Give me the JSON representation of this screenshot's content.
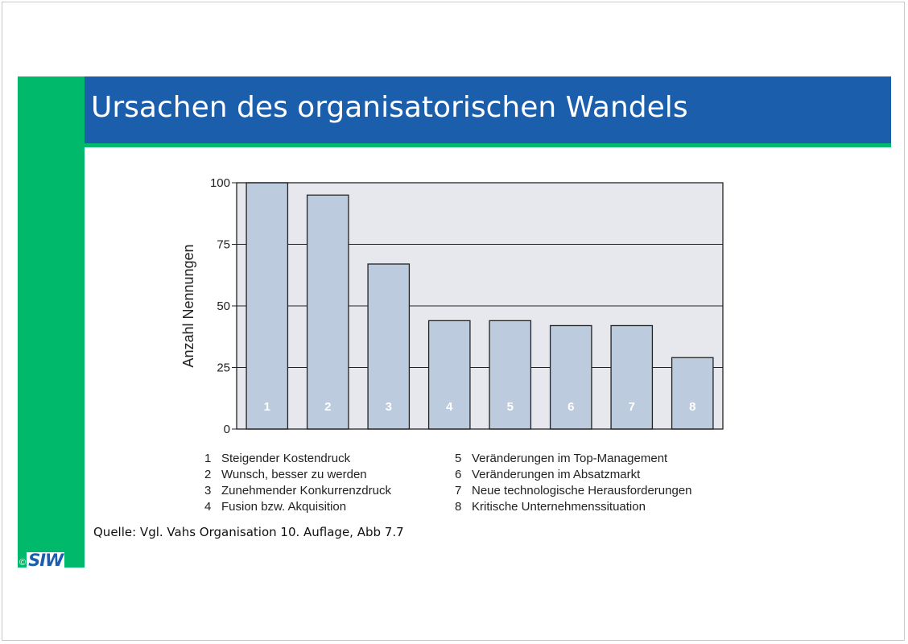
{
  "slide": {
    "title": "Ursachen des organisatorischen Wandels",
    "source": "Quelle: Vgl. Vahs Organisation 10. Auflage, Abb 7.7",
    "logo": {
      "copyright": "©",
      "text": "SIW"
    },
    "colors": {
      "title_band": "#1b5eab",
      "accent_green": "#00b96b"
    }
  },
  "chart_data": {
    "type": "bar",
    "ylabel": "Anzahl Nennungen",
    "ylim": [
      0,
      100
    ],
    "yticks": [
      0,
      25,
      50,
      75,
      100
    ],
    "grid": true,
    "categories": [
      "1",
      "2",
      "3",
      "4",
      "5",
      "6",
      "7",
      "8"
    ],
    "values": [
      100,
      95,
      67,
      44,
      44,
      42,
      42,
      29
    ],
    "legend": [
      {
        "num": "1",
        "label": "Steigender Kostendruck"
      },
      {
        "num": "2",
        "label": "Wunsch, besser zu werden"
      },
      {
        "num": "3",
        "label": "Zunehmender Konkurrenzdruck"
      },
      {
        "num": "4",
        "label": "Fusion bzw. Akquisition"
      },
      {
        "num": "5",
        "label": "Veränderungen im Top-Management"
      },
      {
        "num": "6",
        "label": "Veränderungen im Absatzmarkt"
      },
      {
        "num": "7",
        "label": "Neue technologische Herausforderungen"
      },
      {
        "num": "8",
        "label": "Kritische Unternehmenssituation"
      }
    ],
    "colors": {
      "bar_fill": "#bccbde",
      "plot_background": "#e6e8ee",
      "bar_label": "#ffffff"
    }
  }
}
